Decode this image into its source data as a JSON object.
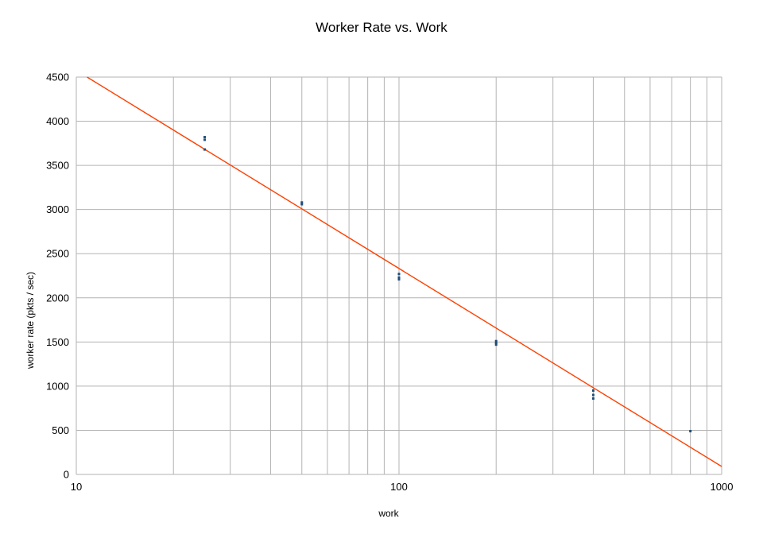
{
  "chart_data": {
    "type": "scatter",
    "title": "Worker Rate vs. Work",
    "xlabel": "work",
    "ylabel": "worker rate (pkts / sec)",
    "x_scale": "log",
    "xlim": [
      10,
      1000
    ],
    "ylim": [
      0,
      4500
    ],
    "x_ticks": [
      "10",
      "100",
      "1000"
    ],
    "y_ticks": [
      "0",
      "500",
      "1000",
      "1500",
      "2000",
      "2500",
      "3000",
      "3500",
      "4000",
      "4500"
    ],
    "grid": true,
    "legend": "none",
    "series": [
      {
        "points": [
          {
            "x": 25,
            "y": 3820
          },
          {
            "x": 25,
            "y": 3790
          },
          {
            "x": 25,
            "y": 3680
          },
          {
            "x": 50,
            "y": 3080
          },
          {
            "x": 50,
            "y": 3060
          },
          {
            "x": 100,
            "y": 2270
          },
          {
            "x": 100,
            "y": 2230
          },
          {
            "x": 100,
            "y": 2210
          },
          {
            "x": 200,
            "y": 1510
          },
          {
            "x": 200,
            "y": 1490
          },
          {
            "x": 200,
            "y": 1470
          },
          {
            "x": 400,
            "y": 950
          },
          {
            "x": 400,
            "y": 900
          },
          {
            "x": 400,
            "y": 860
          },
          {
            "x": 800,
            "y": 490
          }
        ]
      }
    ],
    "trendline": {
      "type": "logarithmic",
      "points": [
        {
          "x": 10.8,
          "y": 4500
        },
        {
          "x": 1000,
          "y": 90
        }
      ]
    },
    "colors": {
      "points": "#1f4e79",
      "trendline": "#ff4000",
      "grid": "#b3b3b3"
    }
  }
}
